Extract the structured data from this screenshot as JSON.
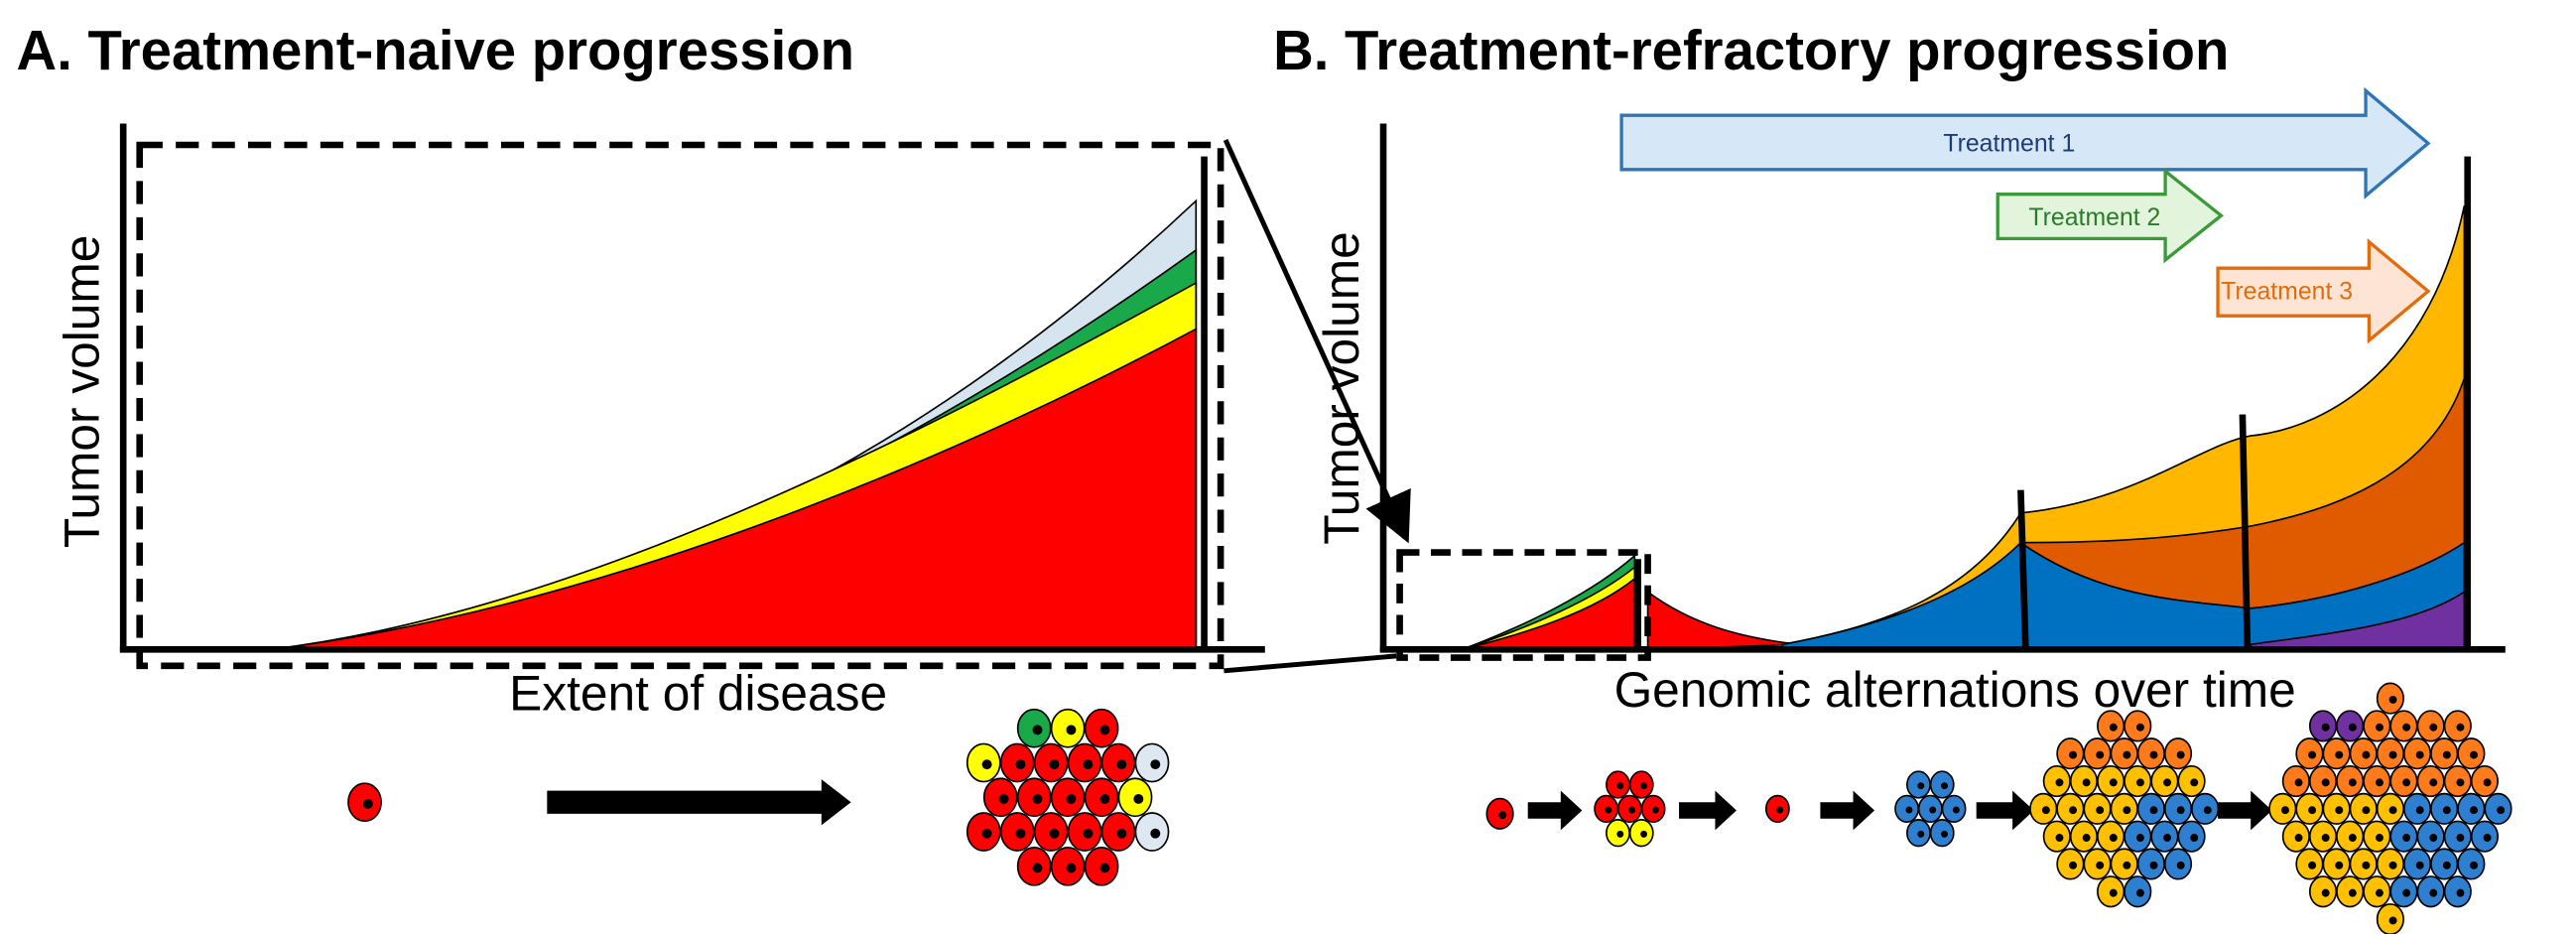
{
  "panel_a": {
    "title": "A. Treatment-naive progression",
    "y_label": "Tumor volume",
    "x_label": "Extent of disease"
  },
  "panel_b": {
    "title": "B. Treatment-refractory progression",
    "y_label": "Tumor volume",
    "x_label": "Genomic alternations over time",
    "treatments": [
      "Treatment 1",
      "Treatment 2",
      "Treatment 3"
    ]
  }
}
